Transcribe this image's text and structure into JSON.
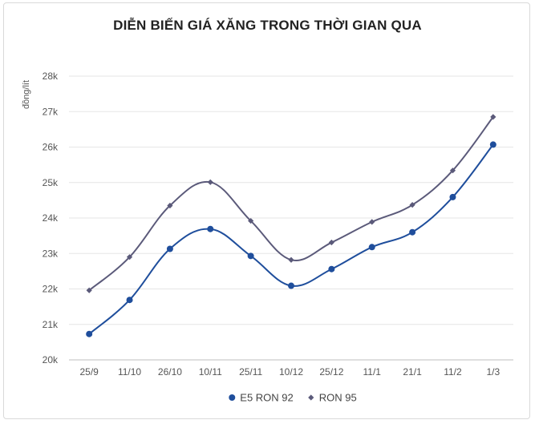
{
  "chart_data": {
    "type": "line",
    "title": "DIỄN BIẾN GIÁ XĂNG TRONG THỜI GIAN QUA",
    "ylabel": "đồng/lít",
    "xlabel": "",
    "categories": [
      "25/9",
      "11/10",
      "26/10",
      "10/11",
      "25/11",
      "10/12",
      "25/12",
      "11/1",
      "21/1",
      "11/2",
      "1/3"
    ],
    "ylim": [
      20000,
      28000
    ],
    "y_ticks": [
      {
        "value": 20000,
        "label": "20k"
      },
      {
        "value": 21000,
        "label": "21k"
      },
      {
        "value": 22000,
        "label": "22k"
      },
      {
        "value": 23000,
        "label": "23k"
      },
      {
        "value": 24000,
        "label": "24k"
      },
      {
        "value": 25000,
        "label": "25k"
      },
      {
        "value": 26000,
        "label": "26k"
      },
      {
        "value": 27000,
        "label": "27k"
      },
      {
        "value": 28000,
        "label": "28k"
      }
    ],
    "grid": true,
    "legend_position": "bottom",
    "series": [
      {
        "name": "E5 RON 92",
        "color": "#1f4e9c",
        "marker": "circle",
        "values": [
          20730,
          21690,
          23130,
          23690,
          22930,
          22090,
          22560,
          23180,
          23600,
          24590,
          26070
        ]
      },
      {
        "name": "RON 95",
        "color": "#5b5a7a",
        "marker": "diamond",
        "values": [
          21960,
          22900,
          24350,
          25010,
          23920,
          22820,
          23310,
          23890,
          24370,
          25340,
          26850
        ]
      }
    ]
  }
}
